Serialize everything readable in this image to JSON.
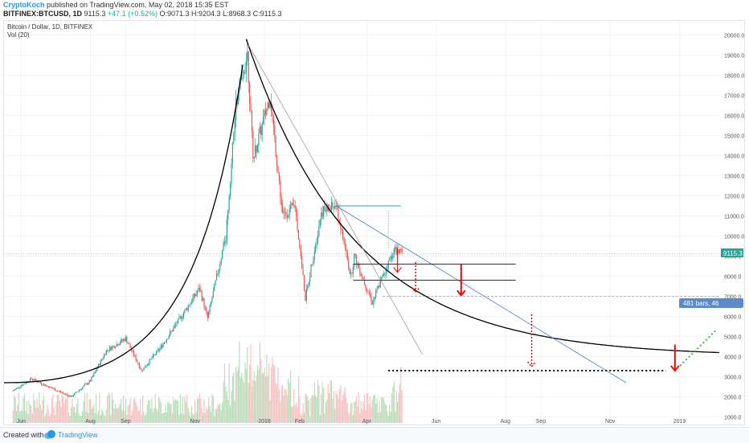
{
  "header": {
    "author": "CryptoKoch",
    "published_text": " published on TradingView.com, May 02, 2018 15:35 EST",
    "symbol": "BITFINEX:BTCUSD, 1D",
    "last": "9115.3",
    "change": "+47.1 (+0.52%)",
    "open_label": "O:",
    "open": "9071.3",
    "high_label": "H:",
    "high": "9204.3",
    "low_label": "L:",
    "low": "8968.3",
    "close_label": "C:",
    "close": "9115.3"
  },
  "legend": {
    "title": "Bitcoin / Dollar, 1D, BITFINEX",
    "volume": "Vol (20)"
  },
  "price_tag": "9115.3",
  "bars_label": "481 bars, 46",
  "footer": {
    "created": "Created with",
    "brand": "TradingView"
  },
  "colors": {
    "up": "#26a69a",
    "down": "#ef5350",
    "volume_up": "#a5d6a7",
    "volume_down": "#f4b4b4",
    "curve": "#000000",
    "arrow_red": "#ff0000",
    "green_dotted": "#4caf50",
    "brand_blue": "#2196f3"
  },
  "chart_data": {
    "type": "candlestick",
    "title": "Bitcoin / Dollar, 1D, BITFINEX",
    "y_ticks": [
      1000,
      2000,
      3000,
      4000,
      5000,
      6000,
      7000,
      8000,
      9000,
      10000,
      11000,
      12000,
      13000,
      14000,
      15000,
      16000,
      17000,
      18000,
      19000,
      20000
    ],
    "x_ticks": [
      "Jun",
      "Aug",
      "Sep",
      "Nov",
      "2018",
      "Feb",
      "Apr",
      "Jun",
      "Aug",
      "Sep",
      "Nov",
      "2019"
    ],
    "ylim": [
      700,
      20700
    ],
    "price_anchors": [
      [
        "2017-05-25",
        2300
      ],
      [
        "2017-06-10",
        2900
      ],
      [
        "2017-06-25",
        2500
      ],
      [
        "2017-07-15",
        2000
      ],
      [
        "2017-08-01",
        2800
      ],
      [
        "2017-08-15",
        4300
      ],
      [
        "2017-09-01",
        4900
      ],
      [
        "2017-09-15",
        3300
      ],
      [
        "2017-10-01",
        4400
      ],
      [
        "2017-10-20",
        6000
      ],
      [
        "2017-11-05",
        7400
      ],
      [
        "2017-11-12",
        5900
      ],
      [
        "2017-11-28",
        10000
      ],
      [
        "2017-12-07",
        16500
      ],
      [
        "2017-12-17",
        19100
      ],
      [
        "2017-12-22",
        13800
      ],
      [
        "2018-01-06",
        17000
      ],
      [
        "2018-01-17",
        11000
      ],
      [
        "2018-01-28",
        11500
      ],
      [
        "2018-02-06",
        6900
      ],
      [
        "2018-02-20",
        11200
      ],
      [
        "2018-03-05",
        11500
      ],
      [
        "2018-03-18",
        8000
      ],
      [
        "2018-03-21",
        9000
      ],
      [
        "2018-04-06",
        6700
      ],
      [
        "2018-04-15",
        8000
      ],
      [
        "2018-04-25",
        9300
      ],
      [
        "2018-05-02",
        9115
      ]
    ],
    "lines": {
      "resistance_1": 8600,
      "support_1": 7800,
      "support_2": 7000,
      "target_low": 3300,
      "green_top": 11500
    },
    "current_price": 9115.3
  }
}
